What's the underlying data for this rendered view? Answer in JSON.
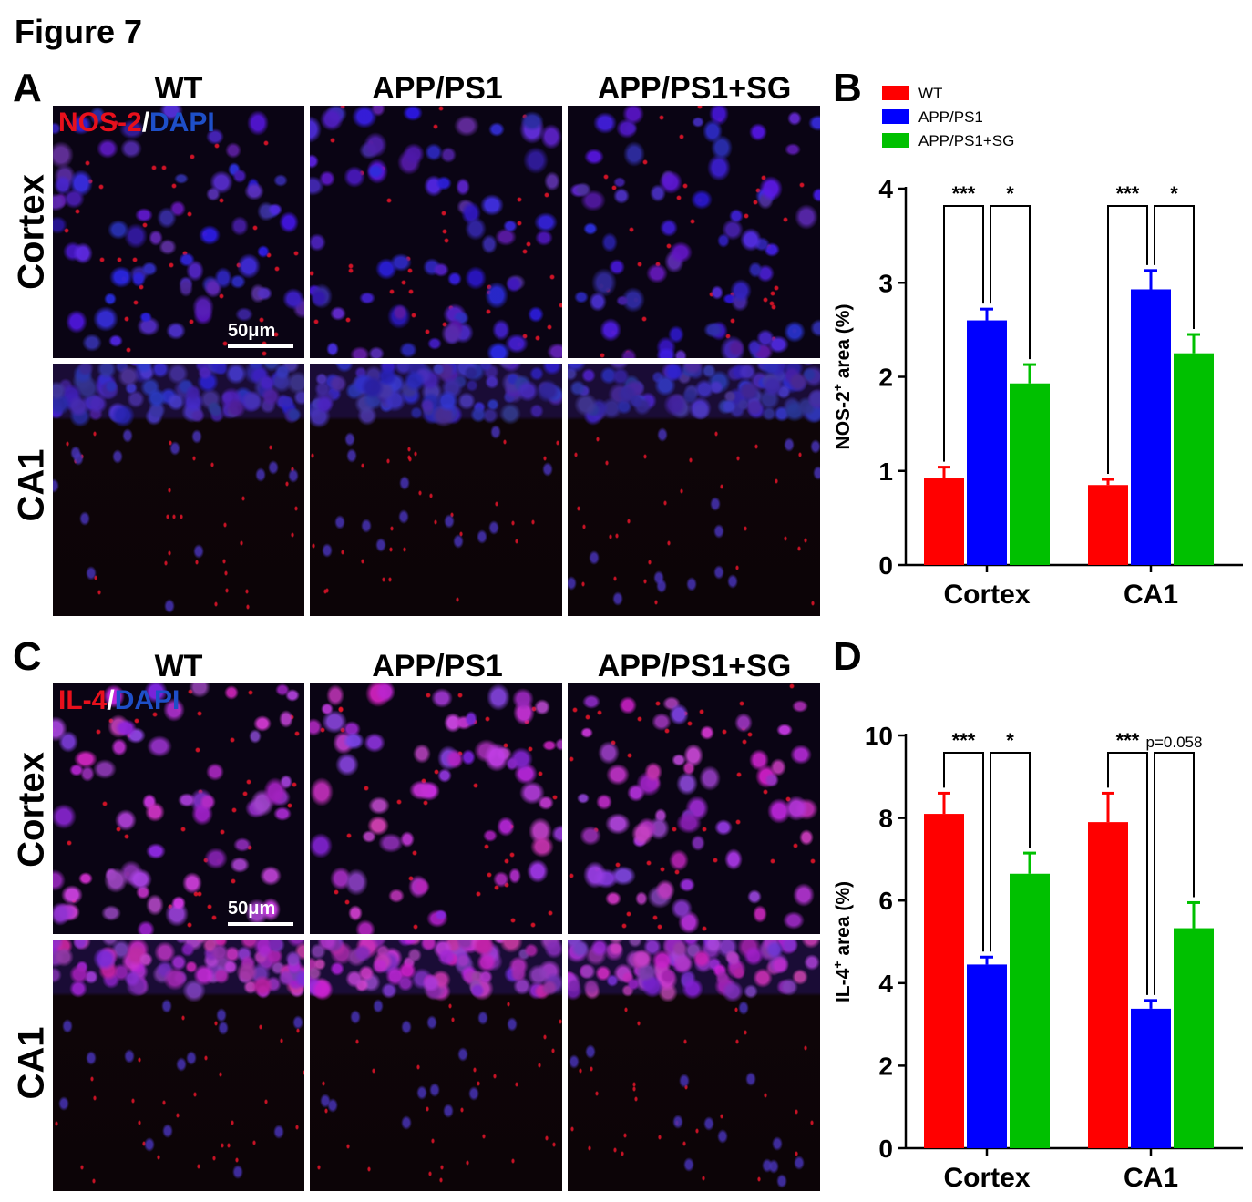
{
  "figure_title": "Figure 7",
  "panels": {
    "A": {
      "letter": "A",
      "columns": [
        "WT",
        "APP/PS1",
        "APP/PS1+SG"
      ],
      "rows": [
        "Cortex",
        "CA1"
      ],
      "stain_marker": "NOS-2",
      "stain_sep": "/",
      "stain_counter": "DAPI",
      "scale_bar": "50μm"
    },
    "B": {
      "letter": "B"
    },
    "C": {
      "letter": "C",
      "columns": [
        "WT",
        "APP/PS1",
        "APP/PS1+SG"
      ],
      "rows": [
        "Cortex",
        "CA1"
      ],
      "stain_marker": "IL-4",
      "stain_sep": "/",
      "stain_counter": "DAPI",
      "scale_bar": "50μm"
    },
    "D": {
      "letter": "D"
    }
  },
  "colors": {
    "WT": "#ff0000",
    "APP/PS1": "#0000ff",
    "APP/PS1+SG": "#00c000",
    "red_stain": "#e8101c",
    "blue_stain": "#1e4fc8"
  },
  "chart_data": [
    {
      "type": "bar",
      "panel": "B",
      "legend": [
        "WT",
        "APP/PS1",
        "APP/PS1+SG"
      ],
      "legend_position": "top",
      "categories": [
        "Cortex",
        "CA1"
      ],
      "ylabel_main": "NOS-2",
      "ylabel_sup": "+",
      "ylabel_rest": " area (%)",
      "ylim": [
        0,
        4
      ],
      "yticks": [
        "0",
        "1",
        "2",
        "3",
        "4"
      ],
      "series": [
        {
          "name": "WT",
          "values": [
            0.92,
            0.85
          ],
          "errors": [
            0.12,
            0.06
          ]
        },
        {
          "name": "APP/PS1",
          "values": [
            2.6,
            2.93
          ],
          "errors": [
            0.12,
            0.2
          ]
        },
        {
          "name": "APP/PS1+SG",
          "values": [
            1.93,
            2.25
          ],
          "errors": [
            0.2,
            0.2
          ]
        }
      ],
      "annotations": [
        {
          "category": 0,
          "from": 0,
          "to": 1,
          "text": "***"
        },
        {
          "category": 0,
          "from": 1,
          "to": 2,
          "text": "*"
        },
        {
          "category": 1,
          "from": 0,
          "to": 1,
          "text": "***"
        },
        {
          "category": 1,
          "from": 1,
          "to": 2,
          "text": "*"
        }
      ]
    },
    {
      "type": "bar",
      "panel": "D",
      "categories": [
        "Cortex",
        "CA1"
      ],
      "ylabel_main": "IL-4",
      "ylabel_sup": "+",
      "ylabel_rest": " area (%)",
      "ylim": [
        0,
        10
      ],
      "yticks": [
        "0",
        "2",
        "4",
        "6",
        "8",
        "10"
      ],
      "series": [
        {
          "name": "WT",
          "values": [
            8.1,
            7.9
          ],
          "errors": [
            0.5,
            0.7
          ]
        },
        {
          "name": "APP/PS1",
          "values": [
            4.45,
            3.38
          ],
          "errors": [
            0.18,
            0.2
          ]
        },
        {
          "name": "APP/PS1+SG",
          "values": [
            6.65,
            5.33
          ],
          "errors": [
            0.5,
            0.62
          ]
        }
      ],
      "annotations": [
        {
          "category": 0,
          "from": 0,
          "to": 1,
          "text": "***"
        },
        {
          "category": 0,
          "from": 1,
          "to": 2,
          "text": "*"
        },
        {
          "category": 1,
          "from": 0,
          "to": 1,
          "text": "***"
        },
        {
          "category": 1,
          "from": 1,
          "to": 2,
          "text": "p=0.058"
        }
      ]
    }
  ]
}
